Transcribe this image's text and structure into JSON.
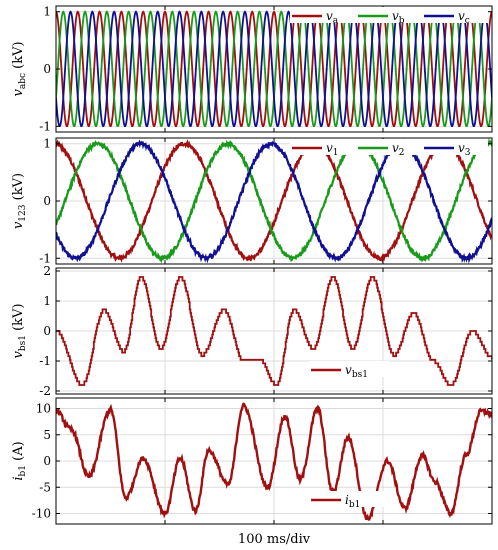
{
  "chart_data": [
    {
      "type": "line",
      "ylabel": "v_abc (kV)",
      "ylabel_parts": {
        "var": "v",
        "sub": "abc",
        "unit": " (kV)"
      },
      "ylim": [
        -1.1,
        1.1
      ],
      "yticks": [
        -1,
        0,
        1
      ],
      "ytick_labels": [
        "-1",
        "0",
        "1"
      ],
      "grid": true,
      "legend_placement": "top-right",
      "series": [
        {
          "name": "v_a",
          "label_var": "v",
          "label_sub": "a",
          "color": "#a01010",
          "kind": "sine",
          "amplitude": 1.0,
          "cycles": 20,
          "phase_deg": 90,
          "noise": 0.0
        },
        {
          "name": "v_b",
          "label_var": "v",
          "label_sub": "b",
          "color": "#1a9a1a",
          "kind": "sine",
          "amplitude": 1.0,
          "cycles": 20,
          "phase_deg": -30,
          "noise": 0.0
        },
        {
          "name": "v_c",
          "label_var": "v",
          "label_sub": "c",
          "color": "#101090",
          "kind": "sine",
          "amplitude": 1.0,
          "cycles": 20,
          "phase_deg": 210,
          "noise": 0.0
        }
      ]
    },
    {
      "type": "line",
      "ylabel": "v_123 (kV)",
      "ylabel_parts": {
        "var": "v",
        "sub": "123",
        "unit": " (kV)"
      },
      "ylim": [
        -1.1,
        1.1
      ],
      "yticks": [
        -1,
        0,
        1
      ],
      "ytick_labels": [
        "-1",
        "0",
        "1"
      ],
      "grid": true,
      "legend_placement": "top-right",
      "series": [
        {
          "name": "v_1",
          "label_var": "v",
          "label_sub": "1",
          "color": "#a01010",
          "kind": "sine",
          "amplitude": 1.0,
          "cycles": 3.35,
          "phase_deg": 95,
          "noise": 0.035
        },
        {
          "name": "v_2",
          "label_var": "v",
          "label_sub": "2",
          "color": "#1a9a1a",
          "kind": "sine",
          "amplitude": 1.0,
          "cycles": 3.35,
          "phase_deg": -25,
          "noise": 0.035
        },
        {
          "name": "v_3",
          "label_var": "v",
          "label_sub": "3",
          "color": "#101090",
          "kind": "sine",
          "amplitude": 1.0,
          "cycles": 3.35,
          "phase_deg": 215,
          "noise": 0.035
        }
      ]
    },
    {
      "type": "line",
      "ylabel": "v_bs1 (kV)",
      "ylabel_parts": {
        "var": "v",
        "sub": "bs1",
        "unit": " (kV)"
      },
      "ylim": [
        -2.1,
        2.1
      ],
      "yticks": [
        -2,
        -1,
        0,
        1,
        2
      ],
      "ytick_labels": [
        "-2",
        "-1",
        "0",
        "1",
        "2"
      ],
      "grid": true,
      "legend_placement": "bottom-center",
      "series": [
        {
          "name": "v_bs1",
          "label_var": "v",
          "label_sub": "bs1",
          "color": "#a01010",
          "kind": "staircase",
          "x": [
            0,
            0.06,
            0.11,
            0.155,
            0.195,
            0.24,
            0.285,
            0.335,
            0.385,
            0.43,
            0.465,
            0.505,
            0.545,
            0.59,
            0.635,
            0.68,
            0.725,
            0.775,
            0.82,
            0.865,
            0.905,
            0.955,
            1.0
          ],
          "y": [
            0.0,
            -1.8,
            0.7,
            -0.7,
            1.8,
            -0.6,
            1.8,
            -0.8,
            0.7,
            -1.0,
            -0.9,
            -1.8,
            0.7,
            -0.6,
            1.8,
            -0.6,
            1.8,
            -0.8,
            0.6,
            -1.0,
            -1.8,
            0.0,
            -0.9
          ]
        }
      ]
    },
    {
      "type": "line",
      "ylabel": "i_b1 (A)",
      "ylabel_parts": {
        "var": "i",
        "sub": "b1",
        "unit": " (A)"
      },
      "ylim": [
        -12,
        12
      ],
      "yticks": [
        -10,
        -5,
        0,
        5,
        10
      ],
      "ytick_labels": [
        "-10",
        "-5",
        "0",
        "5",
        "10"
      ],
      "grid": true,
      "legend_placement": "bottom-center",
      "series": [
        {
          "name": "i_b1",
          "label_var": "i",
          "label_sub": "b1",
          "color": "#a01010",
          "kind": "smooth",
          "x": [
            0,
            0.035,
            0.075,
            0.125,
            0.16,
            0.2,
            0.25,
            0.285,
            0.32,
            0.35,
            0.395,
            0.43,
            0.485,
            0.525,
            0.56,
            0.6,
            0.635,
            0.67,
            0.715,
            0.76,
            0.8,
            0.84,
            0.87,
            0.905,
            0.94,
            0.975,
            1.0
          ],
          "y": [
            9.5,
            6,
            -3,
            9.8,
            -7,
            0.5,
            -10,
            0.5,
            -9.5,
            2,
            -4.5,
            10.5,
            -5,
            8.5,
            -3.5,
            10,
            -6,
            4.5,
            -11,
            0,
            -9,
            1,
            -4,
            -10,
            1,
            9.5,
            9
          ]
        }
      ]
    }
  ],
  "xlabel": "100 ms/div",
  "x_divisions": 4
}
